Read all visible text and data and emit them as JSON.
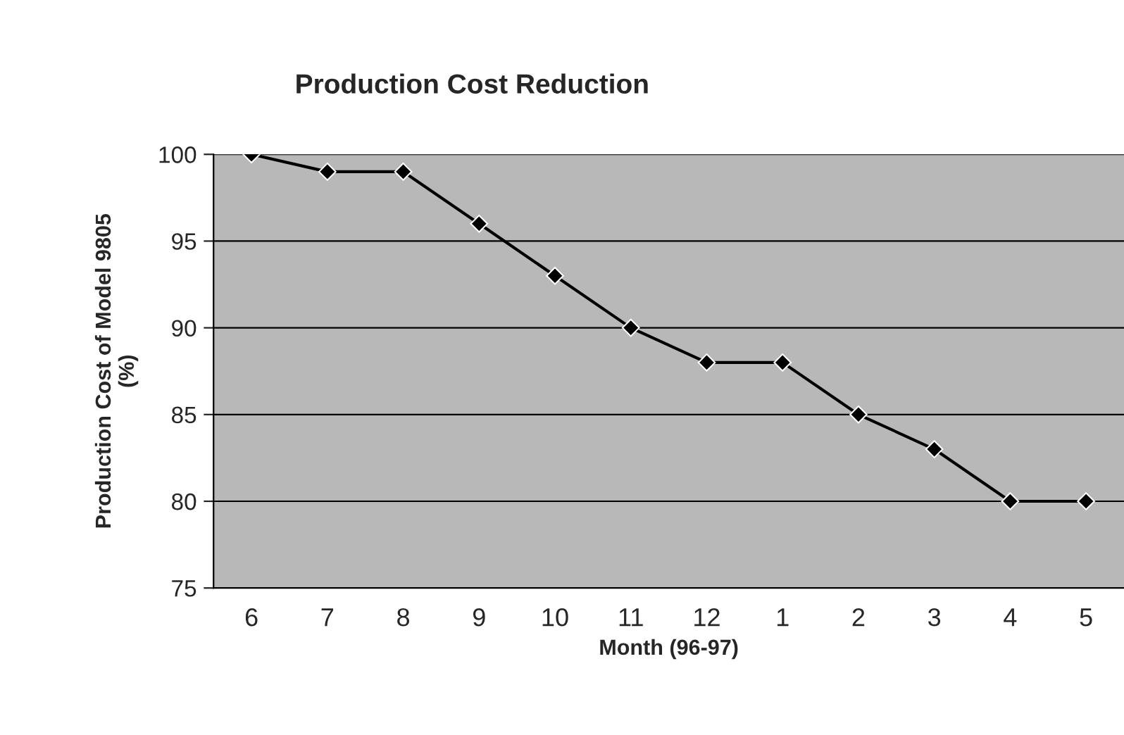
{
  "chart_data": {
    "type": "line",
    "title": "Production Cost Reduction",
    "xlabel": "Month (96-97)",
    "ylabel": "Production Cost of Model 9805\n(%)",
    "categories": [
      "6",
      "7",
      "8",
      "9",
      "10",
      "11",
      "12",
      "1",
      "2",
      "3",
      "4",
      "5"
    ],
    "series": [
      {
        "color": "#000000",
        "values": [
          100,
          99,
          99,
          96,
          93,
          90,
          88,
          88,
          85,
          83,
          80,
          80
        ]
      }
    ],
    "ylim": [
      75,
      100
    ],
    "yticks": [
      75,
      80,
      85,
      90,
      95,
      100
    ],
    "grid": "y",
    "marker": "diamond",
    "line_style": "solid"
  }
}
